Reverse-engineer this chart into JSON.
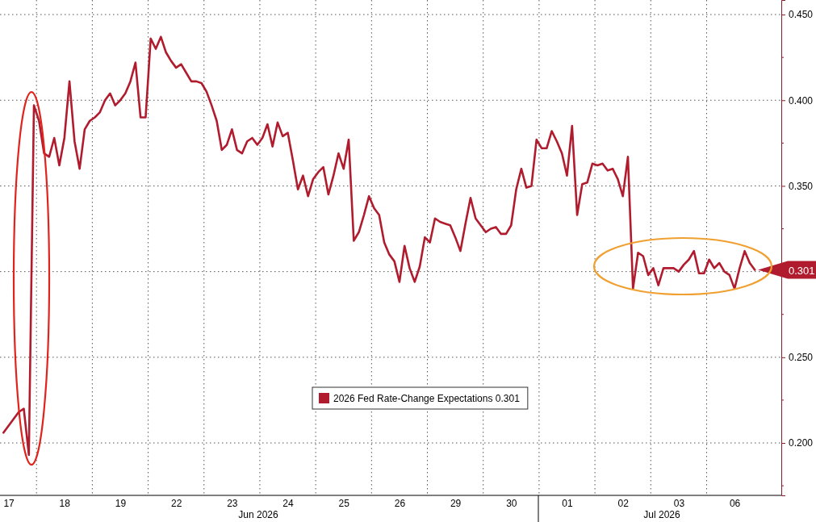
{
  "chart_data": {
    "type": "line",
    "legend": "bottom",
    "grid": true,
    "categories": [
      null,
      null,
      null,
      null,
      null,
      "17",
      null,
      null,
      null,
      null,
      null,
      null,
      null,
      null,
      null,
      null,
      "18",
      null,
      null,
      null,
      null,
      null,
      null,
      null,
      null,
      null,
      null,
      "19",
      null,
      null,
      null,
      null,
      null,
      null,
      null,
      null,
      null,
      null,
      "22",
      null,
      null,
      null,
      null,
      null,
      null,
      null,
      null,
      null,
      null,
      "23",
      null,
      null,
      null,
      null,
      null,
      null,
      null,
      null,
      null,
      null,
      "24",
      null,
      null,
      null,
      null,
      null,
      null,
      null,
      null,
      null,
      null,
      "25",
      null,
      null,
      null,
      null,
      null,
      null,
      null,
      null,
      null,
      null,
      "26",
      null,
      null,
      null,
      null,
      null,
      null,
      null,
      null,
      null,
      null,
      "29",
      null,
      null,
      null,
      null,
      null,
      null,
      null,
      null,
      null,
      null,
      "30",
      null,
      null,
      null,
      null,
      null,
      null,
      null,
      null,
      null,
      null,
      "01",
      null,
      null,
      null,
      null,
      null,
      null,
      null,
      null,
      null,
      null,
      "02",
      null,
      null,
      null,
      null,
      null,
      null,
      null,
      null,
      null,
      null,
      "03",
      null,
      null,
      null,
      null,
      null,
      null,
      null,
      null,
      null,
      null,
      "06",
      null,
      null,
      null,
      null,
      null
    ],
    "ylim": [
      0.1694,
      0.4585
    ],
    "yticks": [
      {
        "value": 0.2,
        "label": "0.200"
      },
      {
        "value": 0.25,
        "label": "0.250"
      },
      {
        "value": 0.3,
        "label": null
      },
      {
        "value": 0.35,
        "label": "0.350"
      },
      {
        "value": 0.4,
        "label": "0.400"
      },
      {
        "value": 0.45,
        "label": "0.450"
      }
    ],
    "annotations": [
      "Jun 2026",
      "Jul 2026"
    ],
    "series": [
      {
        "name": "2026 Fed Rate-Change Expectations 0.301",
        "color": "#b01c2e",
        "values": [
          null,
          null,
          null,
          null,
          0.206,
          0.21,
          0.214,
          0.218,
          0.22,
          0.193,
          0.397,
          0.388,
          0.369,
          0.367,
          0.378,
          0.362,
          0.378,
          0.411,
          0.376,
          0.36,
          0.383,
          0.388,
          0.39,
          0.393,
          0.4,
          0.404,
          0.397,
          0.4,
          0.404,
          0.411,
          0.422,
          0.39,
          0.39,
          0.436,
          0.43,
          0.437,
          0.428,
          0.423,
          0.419,
          0.421,
          0.416,
          0.411,
          0.411,
          0.41,
          0.405,
          0.397,
          0.388,
          0.371,
          0.374,
          0.383,
          0.371,
          0.369,
          0.376,
          0.378,
          0.374,
          0.378,
          0.386,
          0.373,
          0.387,
          0.379,
          0.381,
          0.365,
          0.348,
          0.356,
          0.344,
          0.354,
          0.358,
          0.361,
          0.345,
          0.356,
          0.369,
          0.36,
          0.377,
          0.318,
          0.323,
          0.333,
          0.344,
          0.337,
          0.333,
          0.317,
          0.31,
          0.306,
          0.294,
          0.315,
          0.302,
          0.294,
          0.303,
          0.32,
          0.317,
          0.331,
          0.329,
          0.328,
          0.327,
          0.32,
          0.312,
          0.328,
          0.343,
          0.331,
          0.327,
          0.323,
          0.325,
          0.326,
          0.322,
          0.322,
          0.327,
          0.348,
          0.36,
          0.349,
          0.35,
          0.377,
          0.372,
          0.372,
          0.382,
          0.376,
          0.369,
          0.356,
          0.385,
          0.333,
          0.351,
          0.352,
          0.363,
          0.362,
          0.363,
          0.359,
          0.36,
          0.354,
          0.344,
          0.367,
          0.29,
          0.311,
          0.309,
          0.298,
          0.302,
          0.292,
          0.302,
          0.302,
          0.302,
          0.3,
          0.304,
          0.307,
          0.312,
          0.299,
          0.299,
          0.307,
          0.302,
          0.305,
          0.3,
          0.298,
          0.29,
          0.302,
          0.312,
          0.305,
          0.301,
          null
        ],
        "value_labels": [
          null,
          null,
          null,
          null,
          null,
          null,
          null,
          null,
          null,
          null,
          null,
          null,
          null,
          null,
          null,
          null,
          null,
          null,
          null,
          null,
          null,
          null,
          null,
          null,
          null,
          null,
          null,
          null,
          null,
          null,
          null,
          null,
          null,
          null,
          null,
          null,
          null,
          null,
          null,
          null,
          null,
          null,
          null,
          null,
          null,
          null,
          null,
          null,
          null,
          null,
          null,
          null,
          null,
          null,
          null,
          null,
          null,
          null,
          null,
          null,
          null,
          null,
          null,
          null,
          null,
          null,
          null,
          null,
          null,
          null,
          null,
          null,
          null,
          null,
          null,
          null,
          null,
          null,
          null,
          null,
          null,
          null,
          null,
          null,
          null,
          null,
          null,
          null,
          null,
          null,
          null,
          null,
          null,
          null,
          null,
          null,
          null,
          null,
          null,
          null,
          null,
          null,
          null,
          null,
          null,
          null,
          null,
          null,
          null,
          null,
          null,
          null,
          null,
          null,
          null,
          null,
          null,
          null,
          null,
          null,
          null,
          null,
          null,
          null,
          null,
          null,
          null,
          null,
          null,
          null,
          null,
          null,
          null,
          null,
          null,
          null,
          null,
          null,
          null,
          null,
          null,
          null,
          null,
          null,
          null,
          null,
          null,
          null,
          null,
          null,
          null,
          null,
          "0.301",
          null
        ]
      }
    ]
  }
}
